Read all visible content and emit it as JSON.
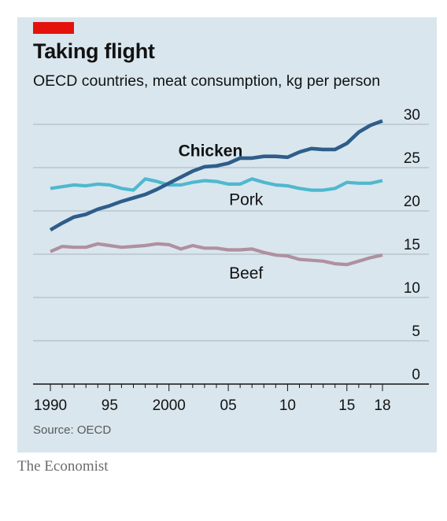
{
  "title": "Taking flight",
  "subtitle": "OECD countries, meat consumption, kg per person",
  "source": "Source: OECD",
  "brand": "The Economist",
  "chart_data": {
    "type": "line",
    "x": [
      1990,
      1991,
      1992,
      1993,
      1994,
      1995,
      1996,
      1997,
      1998,
      1999,
      2000,
      2001,
      2002,
      2003,
      2004,
      2005,
      2006,
      2007,
      2008,
      2009,
      2010,
      2011,
      2012,
      2013,
      2014,
      2015,
      2016,
      2017,
      2018
    ],
    "series": [
      {
        "name": "Chicken",
        "color": "#2e5d8a",
        "values": [
          17.8,
          18.6,
          19.3,
          19.6,
          20.2,
          20.6,
          21.1,
          21.5,
          21.9,
          22.5,
          23.2,
          23.9,
          24.6,
          25.1,
          25.2,
          25.5,
          26.1,
          26.1,
          26.3,
          26.3,
          26.2,
          26.8,
          27.2,
          27.1,
          27.1,
          27.8,
          29.1,
          29.9,
          30.4
        ]
      },
      {
        "name": "Pork",
        "color": "#4fb8cf",
        "values": [
          22.6,
          22.8,
          23.0,
          22.9,
          23.1,
          23.0,
          22.6,
          22.4,
          23.7,
          23.4,
          23.0,
          23.0,
          23.3,
          23.5,
          23.4,
          23.1,
          23.1,
          23.7,
          23.3,
          23.0,
          22.9,
          22.6,
          22.4,
          22.4,
          22.6,
          23.3,
          23.2,
          23.2,
          23.5
        ]
      },
      {
        "name": "Beef",
        "color": "#b0909f",
        "values": [
          15.3,
          15.9,
          15.8,
          15.8,
          16.2,
          16.0,
          15.8,
          15.9,
          16.0,
          16.2,
          16.1,
          15.6,
          16.0,
          15.7,
          15.7,
          15.5,
          15.5,
          15.6,
          15.2,
          14.9,
          14.8,
          14.4,
          14.3,
          14.2,
          13.9,
          13.8,
          14.2,
          14.6,
          14.9
        ]
      }
    ],
    "xticks": [
      {
        "value": 1990,
        "label": "1990"
      },
      {
        "value": 1995,
        "label": "95"
      },
      {
        "value": 2000,
        "label": "2000"
      },
      {
        "value": 2005,
        "label": "05"
      },
      {
        "value": 2010,
        "label": "10"
      },
      {
        "value": 2015,
        "label": "15"
      },
      {
        "value": 2018,
        "label": "18"
      }
    ],
    "yticks": [
      0,
      5,
      10,
      15,
      20,
      25,
      30
    ],
    "ylim": [
      0,
      30
    ],
    "xlim": [
      1990,
      2018
    ],
    "grid": true,
    "series_labels": [
      {
        "name": "Chicken",
        "x": 2003.5,
        "y": 26.3,
        "bold": true
      },
      {
        "name": "Pork",
        "x": 2006.5,
        "y": 20.7,
        "bold": false
      },
      {
        "name": "Beef",
        "x": 2006.5,
        "y": 12.2,
        "bold": false
      }
    ]
  }
}
